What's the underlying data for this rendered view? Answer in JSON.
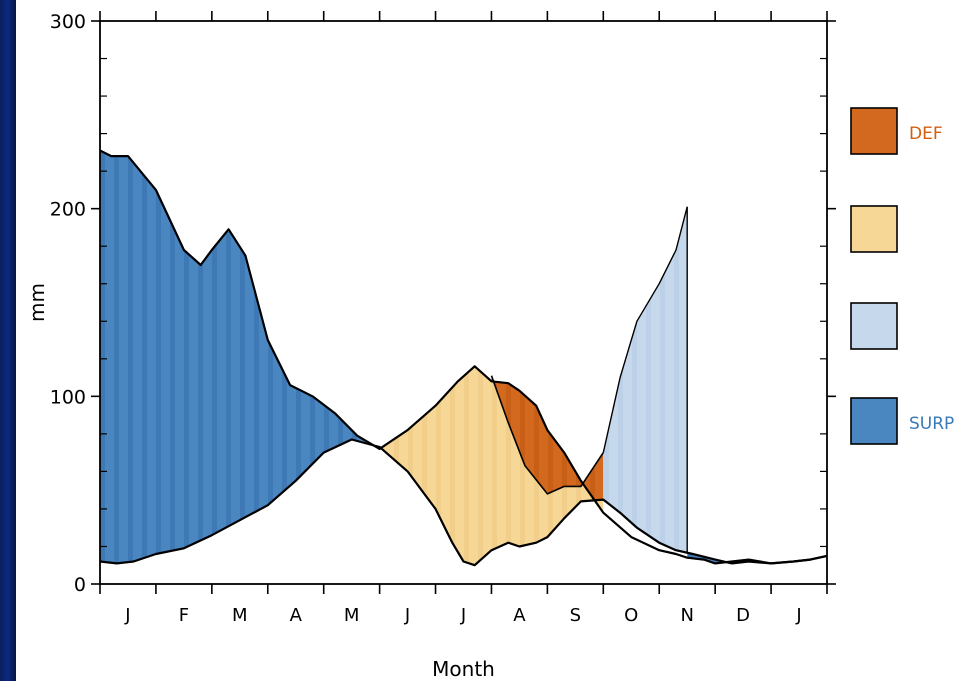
{
  "chart_data": {
    "type": "area",
    "xlabel": "Month",
    "ylabel": "mm",
    "ylim": [
      0,
      300
    ],
    "yticks": [
      "0",
      "100",
      "200",
      "300"
    ],
    "categories": [
      "J",
      "F",
      "M",
      "A",
      "M",
      "J",
      "J",
      "A",
      "S",
      "O",
      "N",
      "D",
      "J"
    ],
    "x_range": [
      0,
      13
    ],
    "precipitation": {
      "x": [
        0,
        0.2,
        0.5,
        1.0,
        1.5,
        1.8,
        2.0,
        2.3,
        2.6,
        3.0,
        3.4,
        3.8,
        4.2,
        4.6,
        5.0,
        5.5,
        6.0,
        6.4,
        6.7,
        7.0,
        7.3,
        7.5,
        7.8,
        8.0,
        8.3,
        8.6,
        9.0,
        9.5,
        10.0,
        10.3,
        10.5,
        10.8,
        11.0,
        11.3,
        11.6,
        12.0,
        12.4,
        12.7,
        13.0
      ],
      "y": [
        231,
        228,
        228,
        210,
        178,
        170,
        178,
        189,
        175,
        130,
        106,
        100,
        91,
        79,
        72,
        82,
        95,
        108,
        116,
        108,
        107,
        103,
        95,
        82,
        70,
        55,
        38,
        25,
        18,
        16,
        14,
        13,
        11,
        12,
        13,
        11,
        12,
        13,
        15
      ]
    },
    "potential_et": {
      "x": [
        0,
        0.3,
        0.6,
        1.0,
        1.5,
        2.0,
        2.5,
        3.0,
        3.5,
        4.0,
        4.5,
        5.0,
        5.5,
        6.0,
        6.3,
        6.5,
        6.7,
        7.0,
        7.3,
        7.5,
        7.8,
        8.0,
        8.3,
        8.6,
        9.0,
        9.3,
        9.6,
        10.0,
        10.3,
        10.6,
        11.0,
        11.3,
        11.6,
        12.0,
        12.4,
        12.7,
        13.0
      ],
      "y": [
        12,
        11,
        12,
        16,
        19,
        26,
        34,
        42,
        55,
        70,
        77,
        73,
        60,
        40,
        22,
        12,
        10,
        18,
        22,
        20,
        22,
        25,
        35,
        44,
        45,
        38,
        30,
        22,
        18,
        16,
        13,
        11,
        12,
        11,
        12,
        13,
        15
      ]
    },
    "soil_water_recharge_curve": {
      "x": [
        9.0,
        9.3,
        9.6,
        10.0,
        10.3,
        10.5
      ],
      "y": [
        70,
        110,
        140,
        160,
        178,
        201
      ]
    },
    "deficit_lower_curve": {
      "x": [
        7.0,
        7.3,
        7.6,
        8.0,
        8.3,
        8.6,
        9.0
      ],
      "y": [
        111,
        86,
        63,
        48,
        52,
        52,
        70
      ]
    },
    "series": [
      {
        "name": "DEF",
        "color": "#d2691e"
      },
      {
        "name": "",
        "color": "#f7d796"
      },
      {
        "name": "",
        "color": "#c6d9ec"
      },
      {
        "name": "SURP",
        "color": "#4a86c0"
      }
    ],
    "legend_position": "right",
    "grid": false
  },
  "legend": [
    {
      "text": "DEF",
      "color": "#d2691e",
      "text_color": "#d35f0e"
    },
    {
      "text": "",
      "color": "#f7d796",
      "text_color": "#f2c77a"
    },
    {
      "text": "",
      "color": "#c6d9ec",
      "text_color": "#c8d6ea"
    },
    {
      "text": "SURP",
      "color": "#4a86c0",
      "text_color": "#3a7ab8"
    }
  ]
}
